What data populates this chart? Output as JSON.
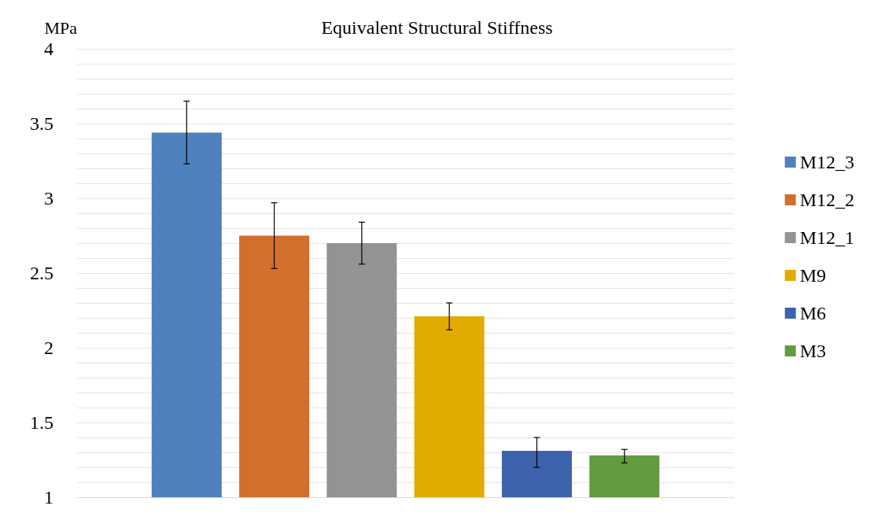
{
  "chart_data": {
    "type": "bar",
    "title": "Equivalent Structural Stiffness",
    "ylabel": "MPa",
    "categories": [
      null
    ],
    "series": [
      {
        "name": "M12_3",
        "color": "#4e81bd",
        "values": [
          3.44
        ],
        "errors": [
          [
            3.23,
            3.65
          ]
        ]
      },
      {
        "name": "M12_2",
        "color": "#d36e2d",
        "values": [
          2.75
        ],
        "errors": [
          [
            2.53,
            2.97
          ]
        ]
      },
      {
        "name": "M12_1",
        "color": "#939393",
        "values": [
          2.7
        ],
        "errors": [
          [
            2.56,
            2.84
          ]
        ]
      },
      {
        "name": "M9",
        "color": "#e2ab00",
        "values": [
          2.21
        ],
        "errors": [
          [
            2.12,
            2.3
          ]
        ]
      },
      {
        "name": "M6",
        "color": "#3e63ad",
        "values": [
          1.31
        ],
        "errors": [
          [
            1.2,
            1.4
          ]
        ]
      },
      {
        "name": "M3",
        "color": "#639b3f",
        "values": [
          1.28
        ],
        "errors": [
          [
            1.23,
            1.32
          ]
        ]
      }
    ],
    "ylim": [
      1,
      4
    ],
    "yticks": [
      1,
      {
        "value": 1.1,
        "label": null
      },
      {
        "value": 1.2,
        "label": null
      },
      {
        "value": 1.3,
        "label": null
      },
      {
        "value": 1.4,
        "label": null
      },
      1.5,
      {
        "value": 1.6,
        "label": null
      },
      {
        "value": 1.7,
        "label": null
      },
      {
        "value": 1.8,
        "label": null
      },
      {
        "value": 1.9,
        "label": null
      },
      2,
      {
        "value": 2.1,
        "label": null
      },
      {
        "value": 2.2,
        "label": null
      },
      {
        "value": 2.3,
        "label": null
      },
      {
        "value": 2.4,
        "label": null
      },
      2.5,
      {
        "value": 2.6,
        "label": null
      },
      {
        "value": 2.7,
        "label": null
      },
      {
        "value": 2.8,
        "label": null
      },
      {
        "value": 2.9,
        "label": null
      },
      3,
      {
        "value": 3.1,
        "label": null
      },
      {
        "value": 3.2,
        "label": null
      },
      {
        "value": 3.3,
        "label": null
      },
      {
        "value": 3.4,
        "label": null
      },
      3.5,
      {
        "value": 3.6,
        "label": null
      },
      {
        "value": 3.7,
        "label": null
      },
      {
        "value": 3.8,
        "label": null
      },
      {
        "value": 3.9,
        "label": null
      },
      4
    ],
    "grid": "y",
    "legend": "right",
    "tick_labels": "y"
  }
}
